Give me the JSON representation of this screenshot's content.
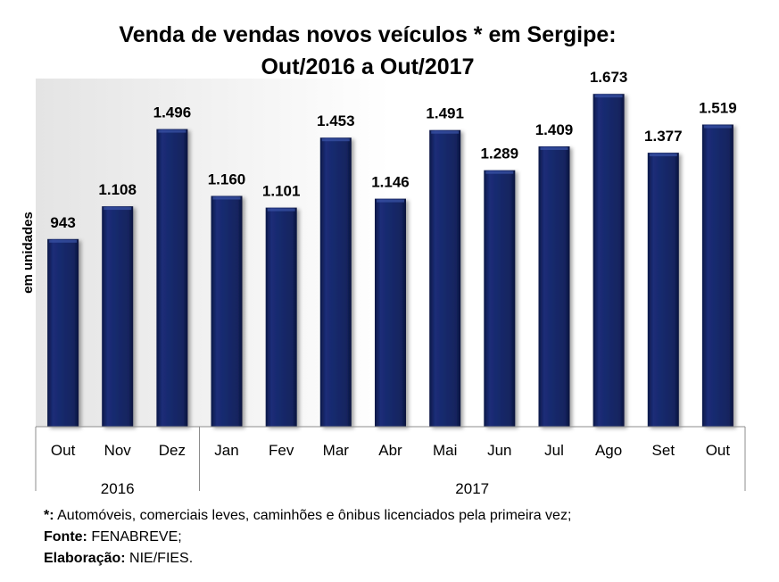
{
  "chart_data": {
    "type": "bar",
    "title": [
      "Venda de vendas novos veículos * em Sergipe:",
      "Out/2016 a Out/2017"
    ],
    "ylabel": "em unidades",
    "xlabel": "",
    "categories": [
      "Out",
      "Nov",
      "Dez",
      "Jan",
      "Fev",
      "Mar",
      "Abr",
      "Mai",
      "Jun",
      "Jul",
      "Ago",
      "Set",
      "Out"
    ],
    "values": [
      943,
      1108,
      1496,
      1160,
      1101,
      1453,
      1146,
      1491,
      1289,
      1409,
      1673,
      1377,
      1519
    ],
    "labels": [
      "943",
      "1.108",
      "1.496",
      "1.160",
      "1.101",
      "1.453",
      "1.146",
      "1.491",
      "1.289",
      "1.409",
      "1.673",
      "1.377",
      "1.519"
    ],
    "groups": [
      {
        "name": "2016",
        "count": 3
      },
      {
        "name": "2017",
        "count": 10
      }
    ],
    "ylim": [
      0,
      1750
    ],
    "grid": false,
    "bar_color": "#17296b"
  },
  "notes": [
    {
      "key": "*:",
      "text": "Automóveis, comerciais leves, caminhões e ônibus licenciados pela primeira vez;"
    },
    {
      "key": "Fonte:",
      "text": "FENABREVE;"
    },
    {
      "key": "Elaboração:",
      "text": "NIE/FIES."
    }
  ]
}
